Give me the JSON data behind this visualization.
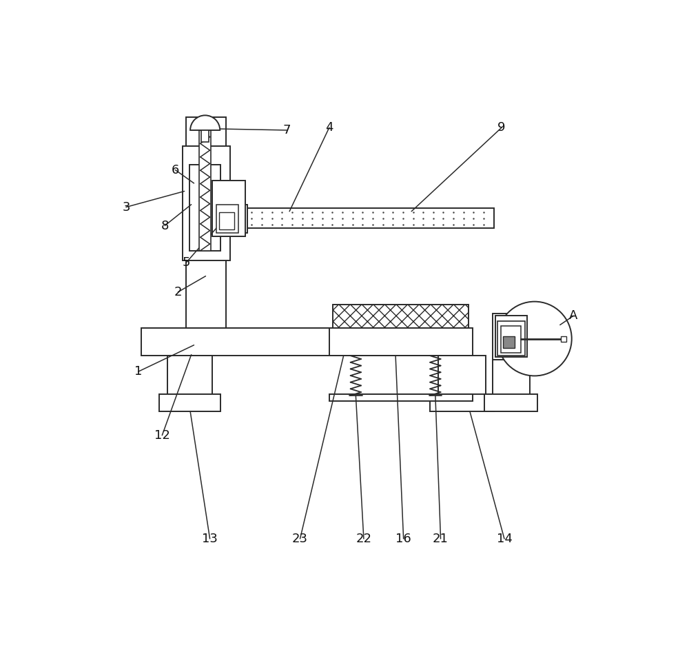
{
  "bg_color": "#ffffff",
  "line_color": "#2a2a2a",
  "lw": 1.4,
  "fig_width": 10.0,
  "fig_height": 9.52,
  "label_fs": 13
}
